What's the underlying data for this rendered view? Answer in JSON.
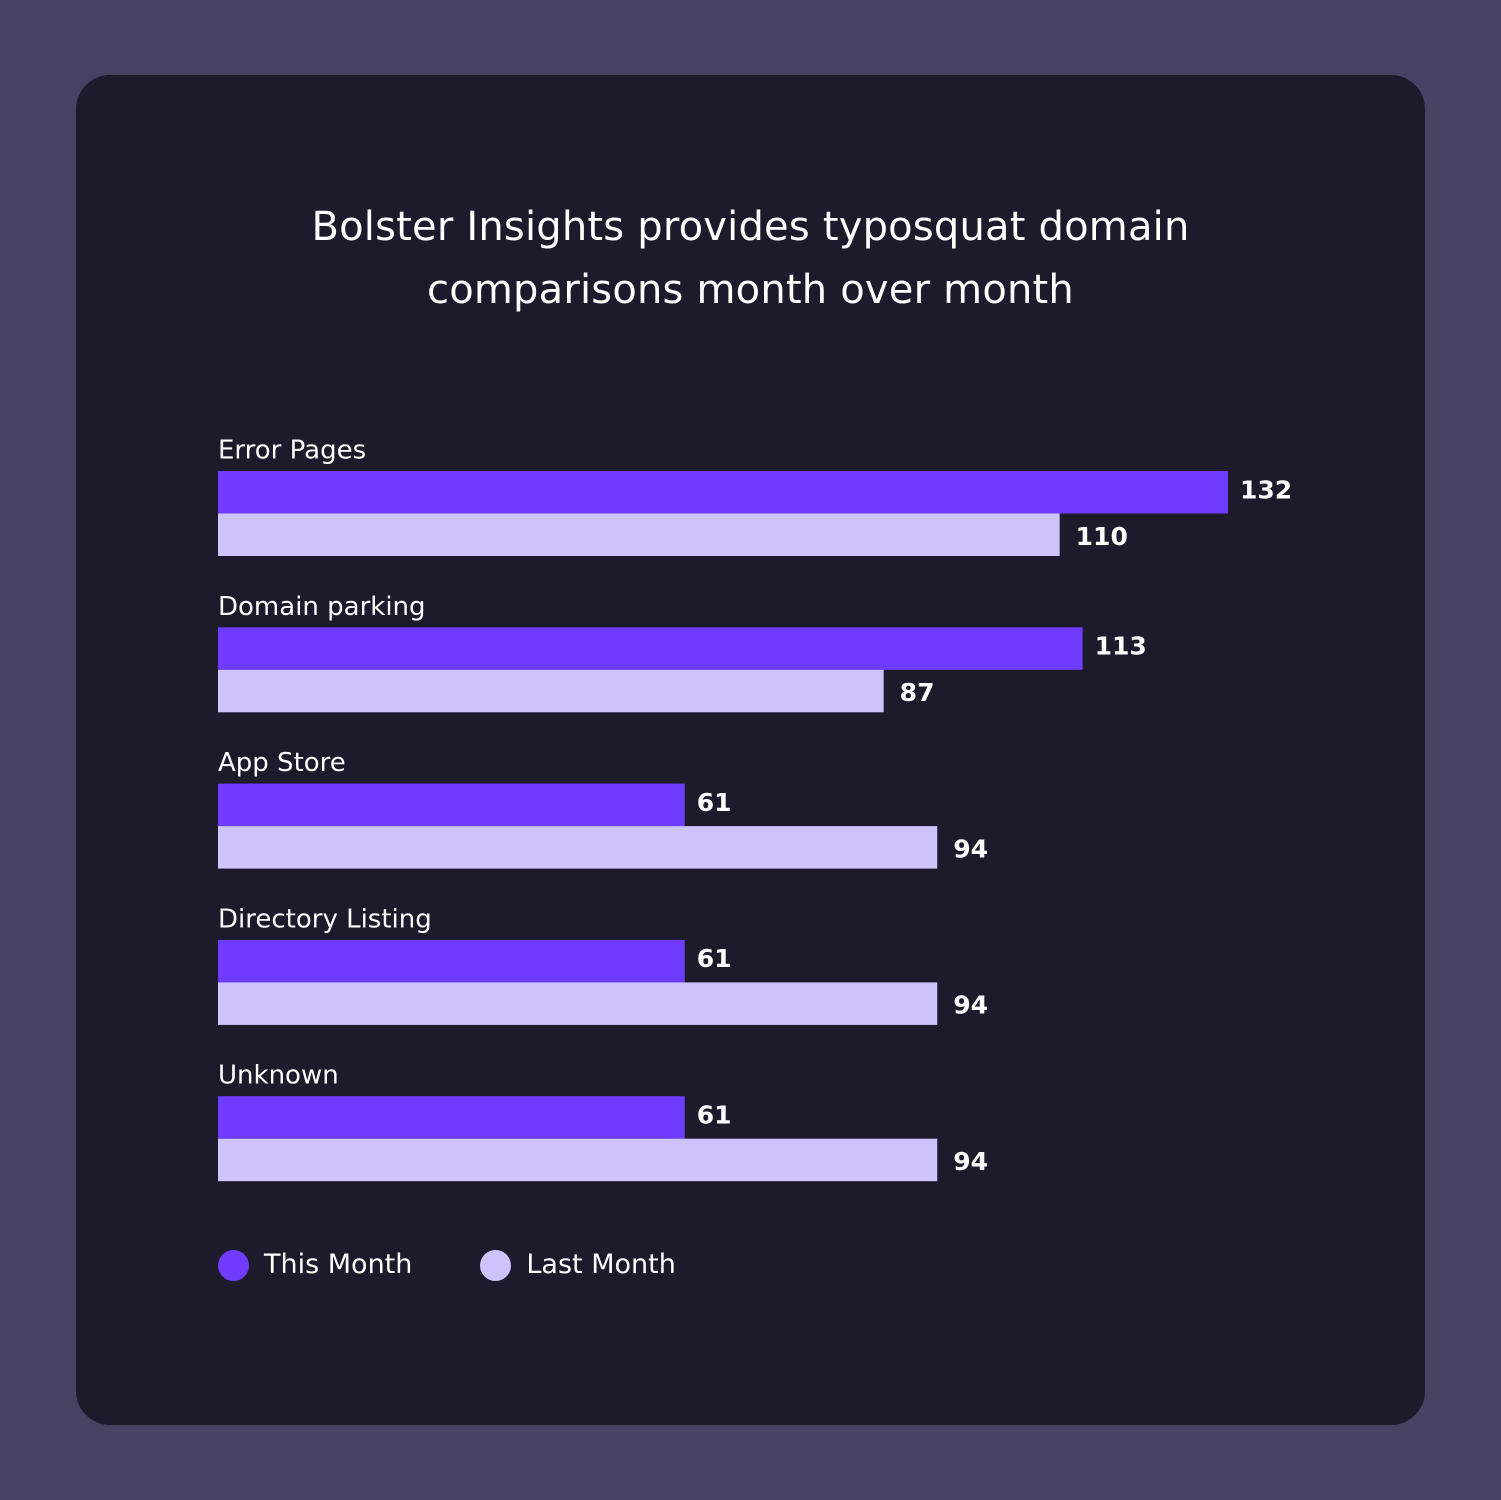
{
  "chart_data": {
    "type": "bar",
    "orientation": "horizontal",
    "title": [
      "Bolster Insights provides typosquat domain",
      "comparisons month over month"
    ],
    "categories": [
      "Error Pages",
      "Domain parking",
      "App Store",
      "Directory Listing",
      "Unknown"
    ],
    "series": [
      {
        "name": "This Month",
        "color": "#6e3bff",
        "values": [
          132,
          113,
          61,
          61,
          61
        ]
      },
      {
        "name": "Last Month",
        "color": "#cec3fd",
        "values": [
          110,
          87,
          94,
          94,
          94
        ]
      }
    ],
    "xlim": [
      0,
      132
    ],
    "grid": false,
    "legend": "bottom-left"
  }
}
